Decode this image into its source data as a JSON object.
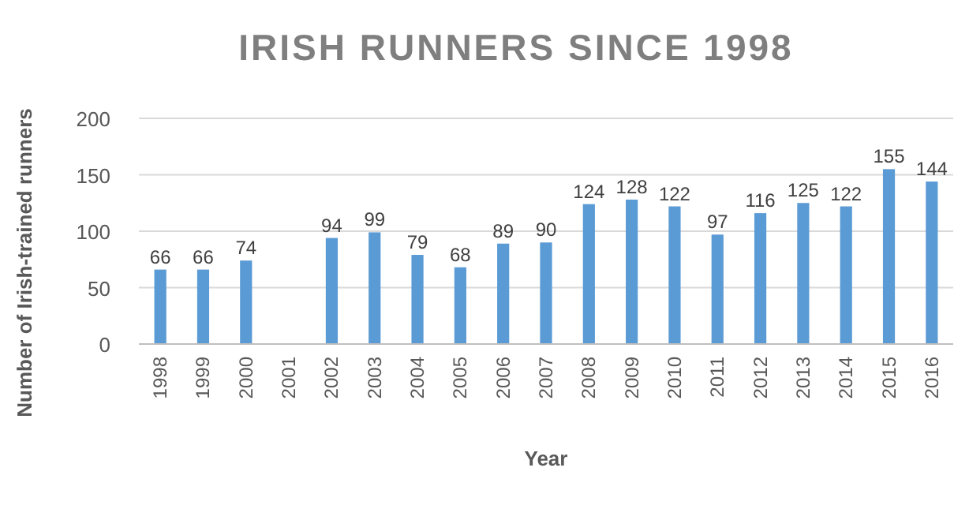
{
  "chart_data": {
    "type": "bar",
    "title": "IRISH RUNNERS SINCE 1998",
    "xlabel": "Year",
    "ylabel": "Number of Irish-trained runners",
    "categories": [
      "1998",
      "1999",
      "2000",
      "2001",
      "2002",
      "2003",
      "2004",
      "2005",
      "2006",
      "2007",
      "2008",
      "2009",
      "2010",
      "2011",
      "2012",
      "2013",
      "2014",
      "2015",
      "2016"
    ],
    "values": [
      66,
      66,
      74,
      null,
      94,
      99,
      79,
      68,
      89,
      90,
      124,
      128,
      122,
      97,
      116,
      125,
      122,
      155,
      144
    ],
    "color": "#5b9bd5",
    "ylim": [
      0,
      200
    ],
    "yticks": [
      0,
      50,
      100,
      150,
      200
    ],
    "grid": "y",
    "data_labels": true
  }
}
